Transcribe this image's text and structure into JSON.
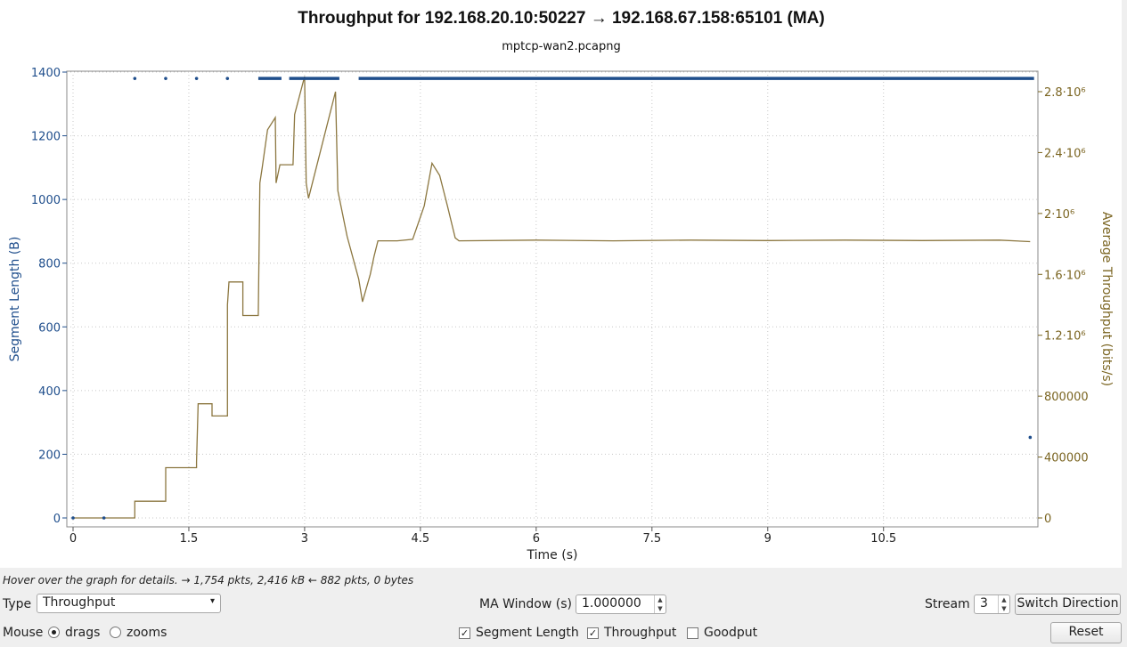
{
  "chart_data": {
    "type": "line",
    "title": "Throughput for 192.168.20.10:50227 → 192.168.67.158:65101 (MA)",
    "subtitle": "mptcp-wan2.pcapng",
    "xlabel": "Time (s)",
    "ylabel_left": "Segment Length (B)",
    "ylabel_right": "Average Throughput (bits/s)",
    "xlim": [
      0,
      12.5
    ],
    "ylim_left": [
      0,
      1400
    ],
    "ylim_right": [
      0,
      2900000
    ],
    "x_ticks": [
      "0",
      "1.5",
      "3",
      "4.5",
      "6",
      "7.5",
      "9",
      "10.5"
    ],
    "x_tick_values": [
      0,
      1.5,
      3,
      4.5,
      6,
      7.5,
      9,
      10.5
    ],
    "y_left_ticks": [
      "0",
      "200",
      "400",
      "600",
      "800",
      "1000",
      "1200",
      "1400"
    ],
    "y_left_tick_values": [
      0,
      200,
      400,
      600,
      800,
      1000,
      1200,
      1400
    ],
    "y_right_ticks": [
      "0",
      "400000",
      "800000",
      "1.2·10⁶",
      "1.6·10⁶",
      "2·10⁶",
      "2.4·10⁶",
      "2.8·10⁶"
    ],
    "y_right_tick_values": [
      0,
      400000,
      800000,
      1200000,
      1600000,
      2000000,
      2400000,
      2800000
    ],
    "grid": true,
    "colors": {
      "segment": "#1f4e8c",
      "throughput": "#8c7740",
      "axis_left": "#1f4e8c",
      "axis_right": "#7a6420"
    },
    "series": [
      {
        "name": "Segment Length",
        "axis": "left",
        "kind": "scatter",
        "points": [
          [
            0,
            0
          ],
          [
            0.4,
            0
          ],
          [
            0.8,
            1380
          ],
          [
            1.2,
            1380
          ],
          [
            1.6,
            1380
          ],
          [
            2.0,
            1380
          ],
          [
            12.4,
            253
          ]
        ],
        "segments": [
          [
            2.4,
            2.7,
            1380
          ],
          [
            2.8,
            3.45,
            1380
          ],
          [
            3.7,
            12.45,
            1380
          ]
        ]
      },
      {
        "name": "Throughput",
        "axis": "right",
        "kind": "line",
        "points": [
          [
            0,
            0
          ],
          [
            0.8,
            0
          ],
          [
            0.8,
            110000
          ],
          [
            1.2,
            110000
          ],
          [
            1.2,
            330000
          ],
          [
            1.6,
            330000
          ],
          [
            1.6,
            370000
          ],
          [
            1.62,
            750000
          ],
          [
            1.8,
            750000
          ],
          [
            1.8,
            670000
          ],
          [
            2.0,
            670000
          ],
          [
            2.0,
            1400000
          ],
          [
            2.02,
            1550000
          ],
          [
            2.2,
            1550000
          ],
          [
            2.2,
            1330000
          ],
          [
            2.4,
            1330000
          ],
          [
            2.42,
            2200000
          ],
          [
            2.45,
            2300000
          ],
          [
            2.52,
            2550000
          ],
          [
            2.62,
            2630000
          ],
          [
            2.63,
            2200000
          ],
          [
            2.68,
            2320000
          ],
          [
            2.85,
            2320000
          ],
          [
            2.87,
            2650000
          ],
          [
            3.0,
            2900000
          ],
          [
            3.02,
            2200000
          ],
          [
            3.05,
            2100000
          ],
          [
            3.4,
            2800000
          ],
          [
            3.43,
            2150000
          ],
          [
            3.55,
            1850000
          ],
          [
            3.7,
            1570000
          ],
          [
            3.75,
            1420000
          ],
          [
            3.85,
            1600000
          ],
          [
            3.9,
            1720000
          ],
          [
            3.95,
            1820000
          ],
          [
            4.2,
            1820000
          ],
          [
            4.4,
            1830000
          ],
          [
            4.55,
            2050000
          ],
          [
            4.65,
            2330000
          ],
          [
            4.75,
            2250000
          ],
          [
            4.85,
            2050000
          ],
          [
            4.95,
            1840000
          ],
          [
            5.0,
            1820000
          ],
          [
            6.0,
            1825000
          ],
          [
            7.0,
            1820000
          ],
          [
            8.0,
            1825000
          ],
          [
            9.0,
            1822000
          ],
          [
            10.0,
            1825000
          ],
          [
            11.0,
            1822000
          ],
          [
            12.0,
            1825000
          ],
          [
            12.4,
            1815000
          ]
        ]
      }
    ]
  },
  "status": {
    "hint": "Hover over the graph for details. → 1,754 pkts, 2,416 kB ← 882 pkts, 0 bytes"
  },
  "controls": {
    "type_label": "Type",
    "type_value": "Throughput",
    "ma_window_label": "MA Window (s)",
    "ma_window_value": "1.000000",
    "stream_label": "Stream",
    "stream_value": "3",
    "switch_direction": "Switch Direction",
    "mouse_label": "Mouse",
    "drags_label": "drags",
    "zooms_label": "zooms",
    "segment_length_label": "Segment Length",
    "throughput_label": "Throughput",
    "goodput_label": "Goodput",
    "reset_label": "Reset"
  }
}
